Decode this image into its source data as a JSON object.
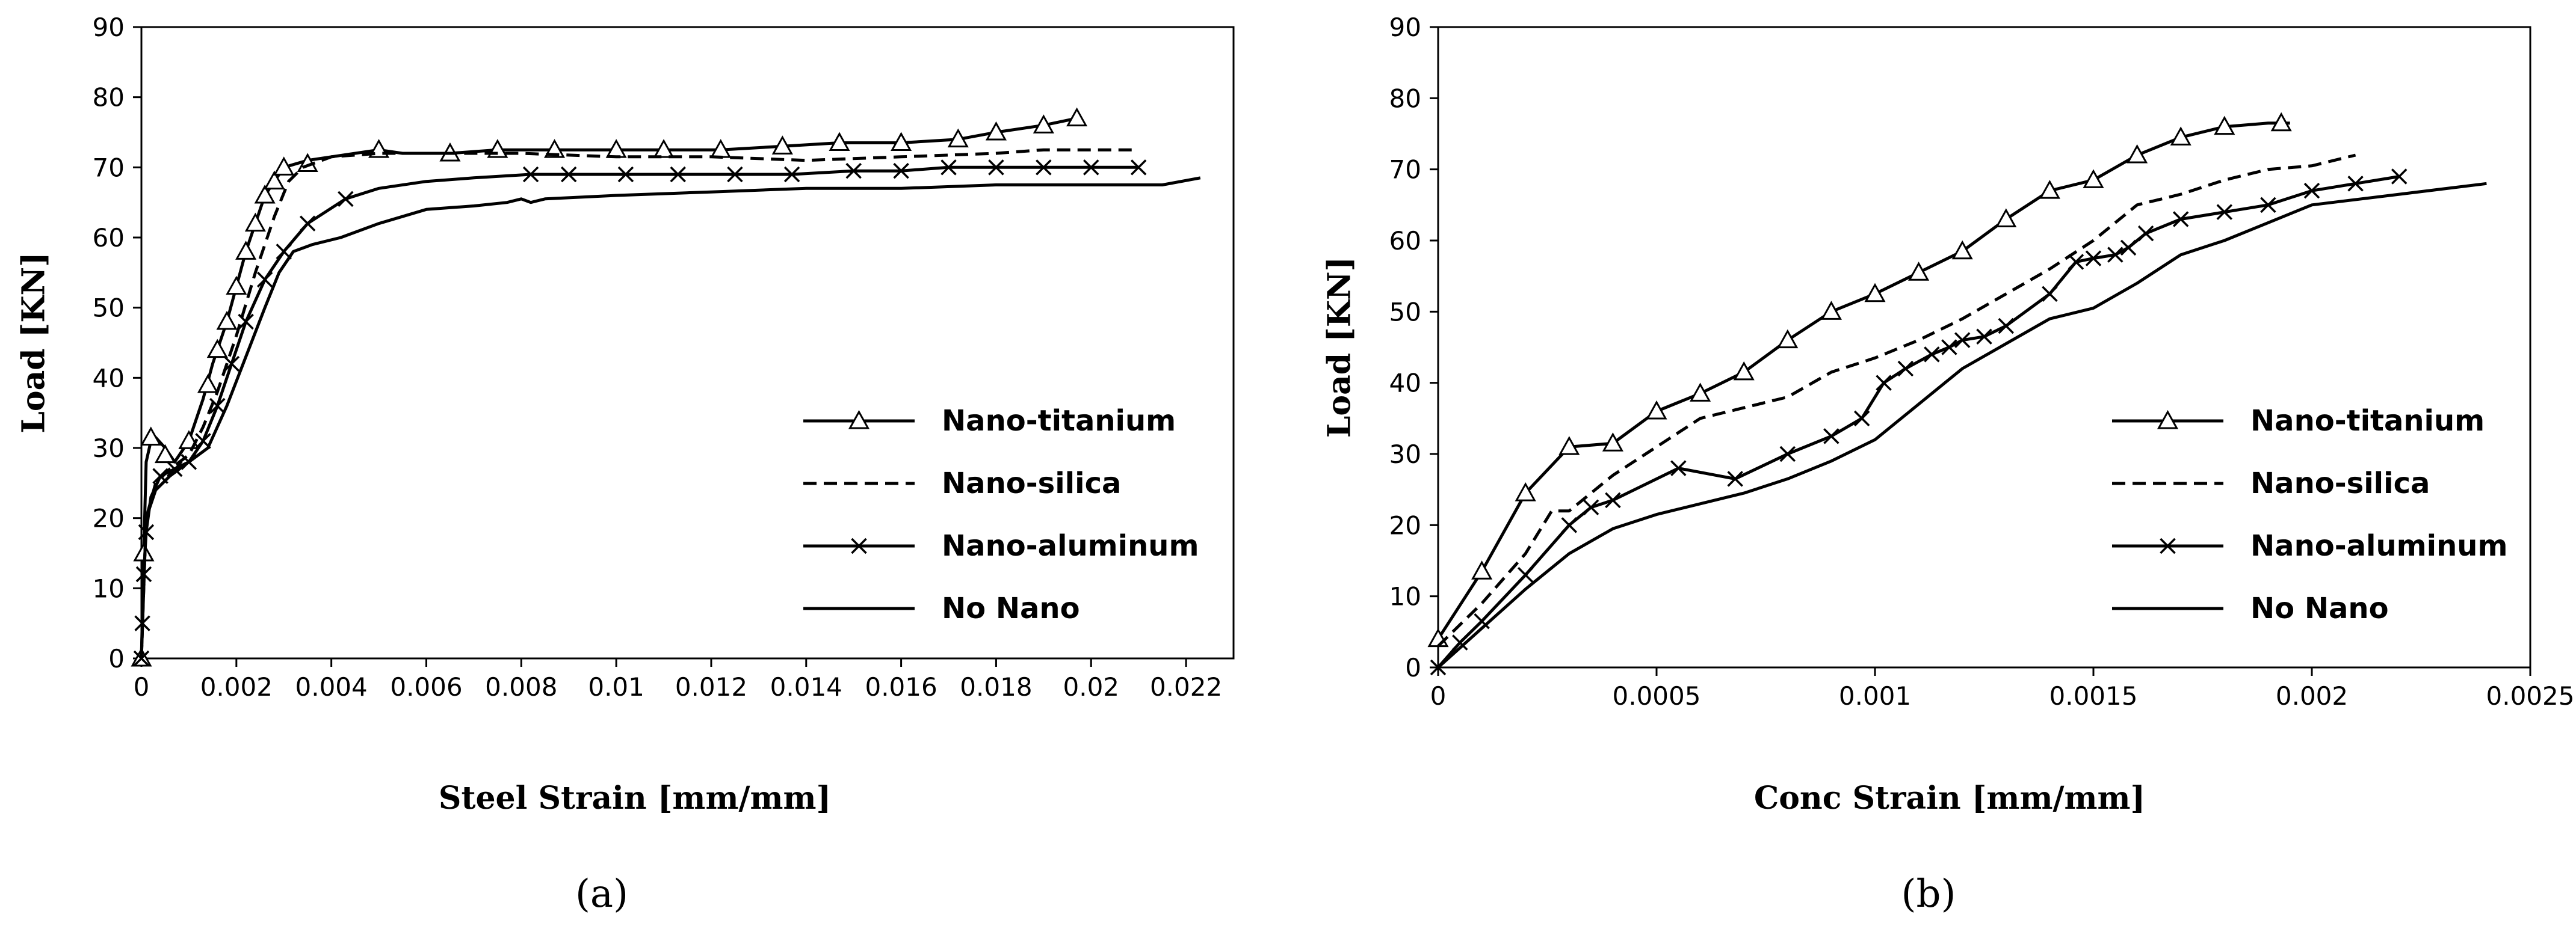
{
  "chart_data": [
    {
      "type": "line",
      "panel_label": "(a)",
      "xlabel": "Steel Strain [mm/mm]",
      "ylabel": "Load [KN]",
      "xlim": [
        0,
        0.023
      ],
      "ylim": [
        0,
        90
      ],
      "xticks": [
        0,
        0.002,
        0.004,
        0.006,
        0.008,
        0.01,
        0.012,
        0.014,
        0.016,
        0.018,
        0.02,
        0.022
      ],
      "xtick_labels": [
        "0",
        "0.002",
        "0.004",
        "0.006",
        "0.008",
        "0.01",
        "0.012",
        "0.014",
        "0.016",
        "0.018",
        "0.02",
        "0.022"
      ],
      "yticks": [
        0,
        10,
        20,
        30,
        40,
        50,
        60,
        70,
        80,
        90
      ],
      "ytick_labels": [
        "0",
        "10",
        "20",
        "30",
        "40",
        "50",
        "60",
        "70",
        "80",
        "90"
      ],
      "legend_position": "center-right",
      "series": [
        {
          "name": "Nano-titanium",
          "style": "solid",
          "marker": "triangle",
          "x": [
            0,
            5e-05,
            0.0001,
            0.0002,
            0.0003,
            0.0005,
            0.0007,
            0.001,
            0.0013,
            0.0015,
            0.0018,
            0.002,
            0.0022,
            0.0024,
            0.0026,
            0.0028,
            0.003,
            0.0035,
            0.004,
            0.005,
            0.0055,
            0.0065,
            0.0075,
            0.0087,
            0.01,
            0.011,
            0.0122,
            0.0135,
            0.0147,
            0.016,
            0.0172,
            0.018,
            0.019,
            0.0197
          ],
          "y": [
            0,
            15,
            28,
            31,
            31.5,
            30,
            28,
            31,
            37,
            42,
            48,
            53,
            58,
            62,
            66,
            68,
            70,
            71,
            71.5,
            72.5,
            72,
            72,
            72.5,
            72.5,
            72.5,
            72.5,
            72.5,
            73,
            73.5,
            73.5,
            74,
            75,
            76,
            77
          ],
          "markers_x": [
            0,
            5e-05,
            0.0002,
            0.0005,
            0.001,
            0.0014,
            0.0016,
            0.0018,
            0.002,
            0.0022,
            0.0024,
            0.0026,
            0.0028,
            0.003,
            0.0035,
            0.005,
            0.0065,
            0.0075,
            0.0087,
            0.01,
            0.011,
            0.0122,
            0.0135,
            0.0147,
            0.016,
            0.0172,
            0.018,
            0.019,
            0.0197
          ],
          "markers_y": [
            0,
            15,
            31.5,
            29,
            31,
            39,
            44,
            48,
            53,
            58,
            62,
            66,
            68,
            70,
            70.5,
            72.5,
            72,
            72.5,
            72.5,
            72.5,
            72.5,
            72.5,
            73,
            73.5,
            73.5,
            74,
            75,
            76,
            77
          ]
        },
        {
          "name": "Nano-silica",
          "style": "dashed",
          "marker": "none",
          "x": [
            0,
            5e-05,
            0.0001,
            0.0003,
            0.0006,
            0.001,
            0.0013,
            0.0016,
            0.002,
            0.0024,
            0.0028,
            0.0031,
            0.0034,
            0.004,
            0.005,
            0.006,
            0.008,
            0.01,
            0.012,
            0.014,
            0.016,
            0.018,
            0.019,
            0.021
          ],
          "y": [
            0,
            10,
            20,
            25,
            27,
            29,
            33,
            38,
            46,
            55,
            63,
            68,
            70,
            71.5,
            72,
            72,
            72,
            71.5,
            71.5,
            71,
            71.5,
            72,
            72.5,
            72.5
          ]
        },
        {
          "name": "Nano-aluminum",
          "style": "solid",
          "marker": "x",
          "x": [
            0,
            2e-05,
            5e-05,
            0.0001,
            0.0002,
            0.0004,
            0.0007,
            0.001,
            0.0013,
            0.0016,
            0.0019,
            0.0022,
            0.0026,
            0.003,
            0.0035,
            0.0043,
            0.005,
            0.006,
            0.007,
            0.0082,
            0.009,
            0.0102,
            0.0113,
            0.0125,
            0.0137,
            0.015,
            0.016,
            0.017,
            0.018,
            0.019,
            0.02,
            0.021
          ],
          "y": [
            0,
            5,
            12,
            18,
            23,
            26,
            27,
            28,
            31,
            36,
            42,
            48,
            54,
            58,
            62,
            65.5,
            67,
            68,
            68.5,
            69,
            69,
            69,
            69,
            69,
            69,
            69.5,
            69.5,
            70,
            70,
            70,
            70,
            70
          ],
          "markers_x": [
            0,
            2e-05,
            5e-05,
            0.0001,
            0.0004,
            0.0007,
            0.001,
            0.0013,
            0.0016,
            0.0019,
            0.0022,
            0.0026,
            0.003,
            0.0035,
            0.0043,
            0.0082,
            0.009,
            0.0102,
            0.0113,
            0.0125,
            0.0137,
            0.015,
            0.016,
            0.017,
            0.018,
            0.019,
            0.02,
            0.021
          ],
          "markers_y": [
            0,
            5,
            12,
            18,
            26,
            27,
            28,
            31,
            36,
            42,
            48,
            54,
            58,
            62,
            65.5,
            69,
            69,
            69,
            69,
            69,
            69,
            69.5,
            69.5,
            70,
            70,
            70,
            70,
            70
          ]
        },
        {
          "name": "No Nano",
          "style": "solid",
          "marker": "none",
          "x": [
            0,
            5e-05,
            0.0001,
            0.0003,
            0.0006,
            0.001,
            0.0014,
            0.0018,
            0.0022,
            0.0026,
            0.0029,
            0.0032,
            0.0036,
            0.0042,
            0.005,
            0.006,
            0.007,
            0.0077,
            0.008,
            0.0082,
            0.0085,
            0.01,
            0.012,
            0.014,
            0.016,
            0.018,
            0.02,
            0.0215,
            0.0223
          ],
          "y": [
            0,
            10,
            20,
            24,
            26,
            28,
            30,
            36,
            43,
            50,
            55,
            58,
            59,
            60,
            62,
            64,
            64.5,
            65,
            65.5,
            65,
            65.5,
            66,
            66.5,
            67,
            67,
            67.5,
            67.5,
            67.5,
            68.5
          ]
        }
      ]
    },
    {
      "type": "line",
      "panel_label": "(b)",
      "xlabel": "Conc Strain [mm/mm]",
      "ylabel": "Load [KN]",
      "xlim": [
        0,
        0.0025
      ],
      "ylim": [
        0,
        90
      ],
      "xticks": [
        0,
        0.0005,
        0.001,
        0.0015,
        0.002,
        0.0025
      ],
      "xtick_labels": [
        "0",
        "0.0005",
        "0.001",
        "0.0015",
        "0.002",
        "0.0025"
      ],
      "yticks": [
        0,
        10,
        20,
        30,
        40,
        50,
        60,
        70,
        80,
        90
      ],
      "ytick_labels": [
        "0",
        "10",
        "20",
        "30",
        "40",
        "50",
        "60",
        "70",
        "80",
        "90"
      ],
      "legend_position": "center-right",
      "series": [
        {
          "name": "Nano-titanium",
          "style": "solid",
          "marker": "triangle",
          "x": [
            0,
            0.0001,
            0.0002,
            0.0003,
            0.0004,
            0.0005,
            0.0006,
            0.0007,
            0.0008,
            0.0009,
            0.001,
            0.0011,
            0.0012,
            0.0013,
            0.0014,
            0.0015,
            0.0016,
            0.0017,
            0.0018,
            0.0019,
            0.00195
          ],
          "y": [
            4,
            13.5,
            24.5,
            31,
            31.5,
            36,
            38.5,
            41.5,
            46,
            50,
            52.5,
            55.5,
            58.5,
            63,
            67,
            68.5,
            72,
            74.5,
            76,
            76.5,
            76.5
          ],
          "markers_x": [
            0,
            0.0001,
            0.0002,
            0.0003,
            0.0004,
            0.0005,
            0.0006,
            0.0007,
            0.0008,
            0.0009,
            0.001,
            0.0011,
            0.0012,
            0.0013,
            0.0014,
            0.0015,
            0.0016,
            0.0017,
            0.0018,
            0.00193
          ],
          "markers_y": [
            4,
            13.5,
            24.5,
            31,
            31.5,
            36,
            38.5,
            41.5,
            46,
            50,
            52.5,
            55.5,
            58.5,
            63,
            67,
            68.5,
            72,
            74.5,
            76,
            76.5
          ]
        },
        {
          "name": "Nano-silica",
          "style": "dashed",
          "marker": "none",
          "x": [
            0,
            0.0001,
            0.0002,
            0.00026,
            0.0003,
            0.0004,
            0.0005,
            0.0006,
            0.0007,
            0.0008,
            0.0009,
            0.001,
            0.0011,
            0.0012,
            0.0013,
            0.0014,
            0.0015,
            0.0016,
            0.0017,
            0.0018,
            0.0019,
            0.002,
            0.0021
          ],
          "y": [
            3,
            9,
            16,
            22,
            22,
            27,
            31,
            35,
            36.5,
            38,
            41.5,
            43.5,
            46,
            49,
            52.5,
            56,
            60,
            65,
            66.5,
            68.5,
            70,
            70.5,
            72
          ]
        },
        {
          "name": "Nano-aluminum",
          "style": "solid",
          "marker": "x",
          "x": [
            0,
            5e-05,
            0.0001,
            0.0002,
            0.0003,
            0.00035,
            0.0004,
            0.00055,
            0.00068,
            0.0008,
            0.0009,
            0.00097,
            0.00102,
            0.00107,
            0.00113,
            0.00117,
            0.0012,
            0.00125,
            0.0013,
            0.0014,
            0.00146,
            0.0015,
            0.00155,
            0.00158,
            0.00162,
            0.0017,
            0.0018,
            0.0019,
            0.002,
            0.0021,
            0.0022
          ],
          "y": [
            0,
            3.5,
            6.5,
            13,
            20,
            22.5,
            23.5,
            28,
            26.5,
            30,
            32.5,
            35,
            40,
            42,
            44,
            45,
            46,
            46.5,
            48,
            52.5,
            57,
            57.5,
            58,
            59,
            61,
            63,
            64,
            65,
            67,
            68,
            69
          ],
          "markers_x": [
            0,
            5e-05,
            0.0001,
            0.0002,
            0.0003,
            0.00035,
            0.0004,
            0.00055,
            0.00068,
            0.0008,
            0.0009,
            0.00097,
            0.00102,
            0.00107,
            0.00113,
            0.00117,
            0.0012,
            0.00125,
            0.0013,
            0.0014,
            0.00146,
            0.0015,
            0.00155,
            0.00158,
            0.00162,
            0.0017,
            0.0018,
            0.0019,
            0.002,
            0.0021,
            0.0022
          ],
          "markers_y": [
            0,
            3.5,
            6.5,
            13,
            20,
            22.5,
            23.5,
            28,
            26.5,
            30,
            32.5,
            35,
            40,
            42,
            44,
            45,
            46,
            46.5,
            48,
            52.5,
            57,
            57.5,
            58,
            59,
            61,
            63,
            64,
            65,
            67,
            68,
            69
          ]
        },
        {
          "name": "No Nano",
          "style": "solid",
          "marker": "none",
          "x": [
            0,
            0.0001,
            0.0002,
            0.0003,
            0.0004,
            0.0005,
            0.0006,
            0.0007,
            0.0008,
            0.0009,
            0.001,
            0.0011,
            0.0012,
            0.0013,
            0.0014,
            0.0015,
            0.0016,
            0.0017,
            0.0018,
            0.0019,
            0.002,
            0.0022,
            0.0024
          ],
          "y": [
            0,
            5.5,
            11,
            16,
            19.5,
            21.5,
            23,
            24.5,
            26.5,
            29,
            32,
            37,
            42,
            45.5,
            49,
            50.5,
            54,
            58,
            60,
            62.5,
            65,
            66.5,
            68
          ]
        }
      ]
    }
  ]
}
